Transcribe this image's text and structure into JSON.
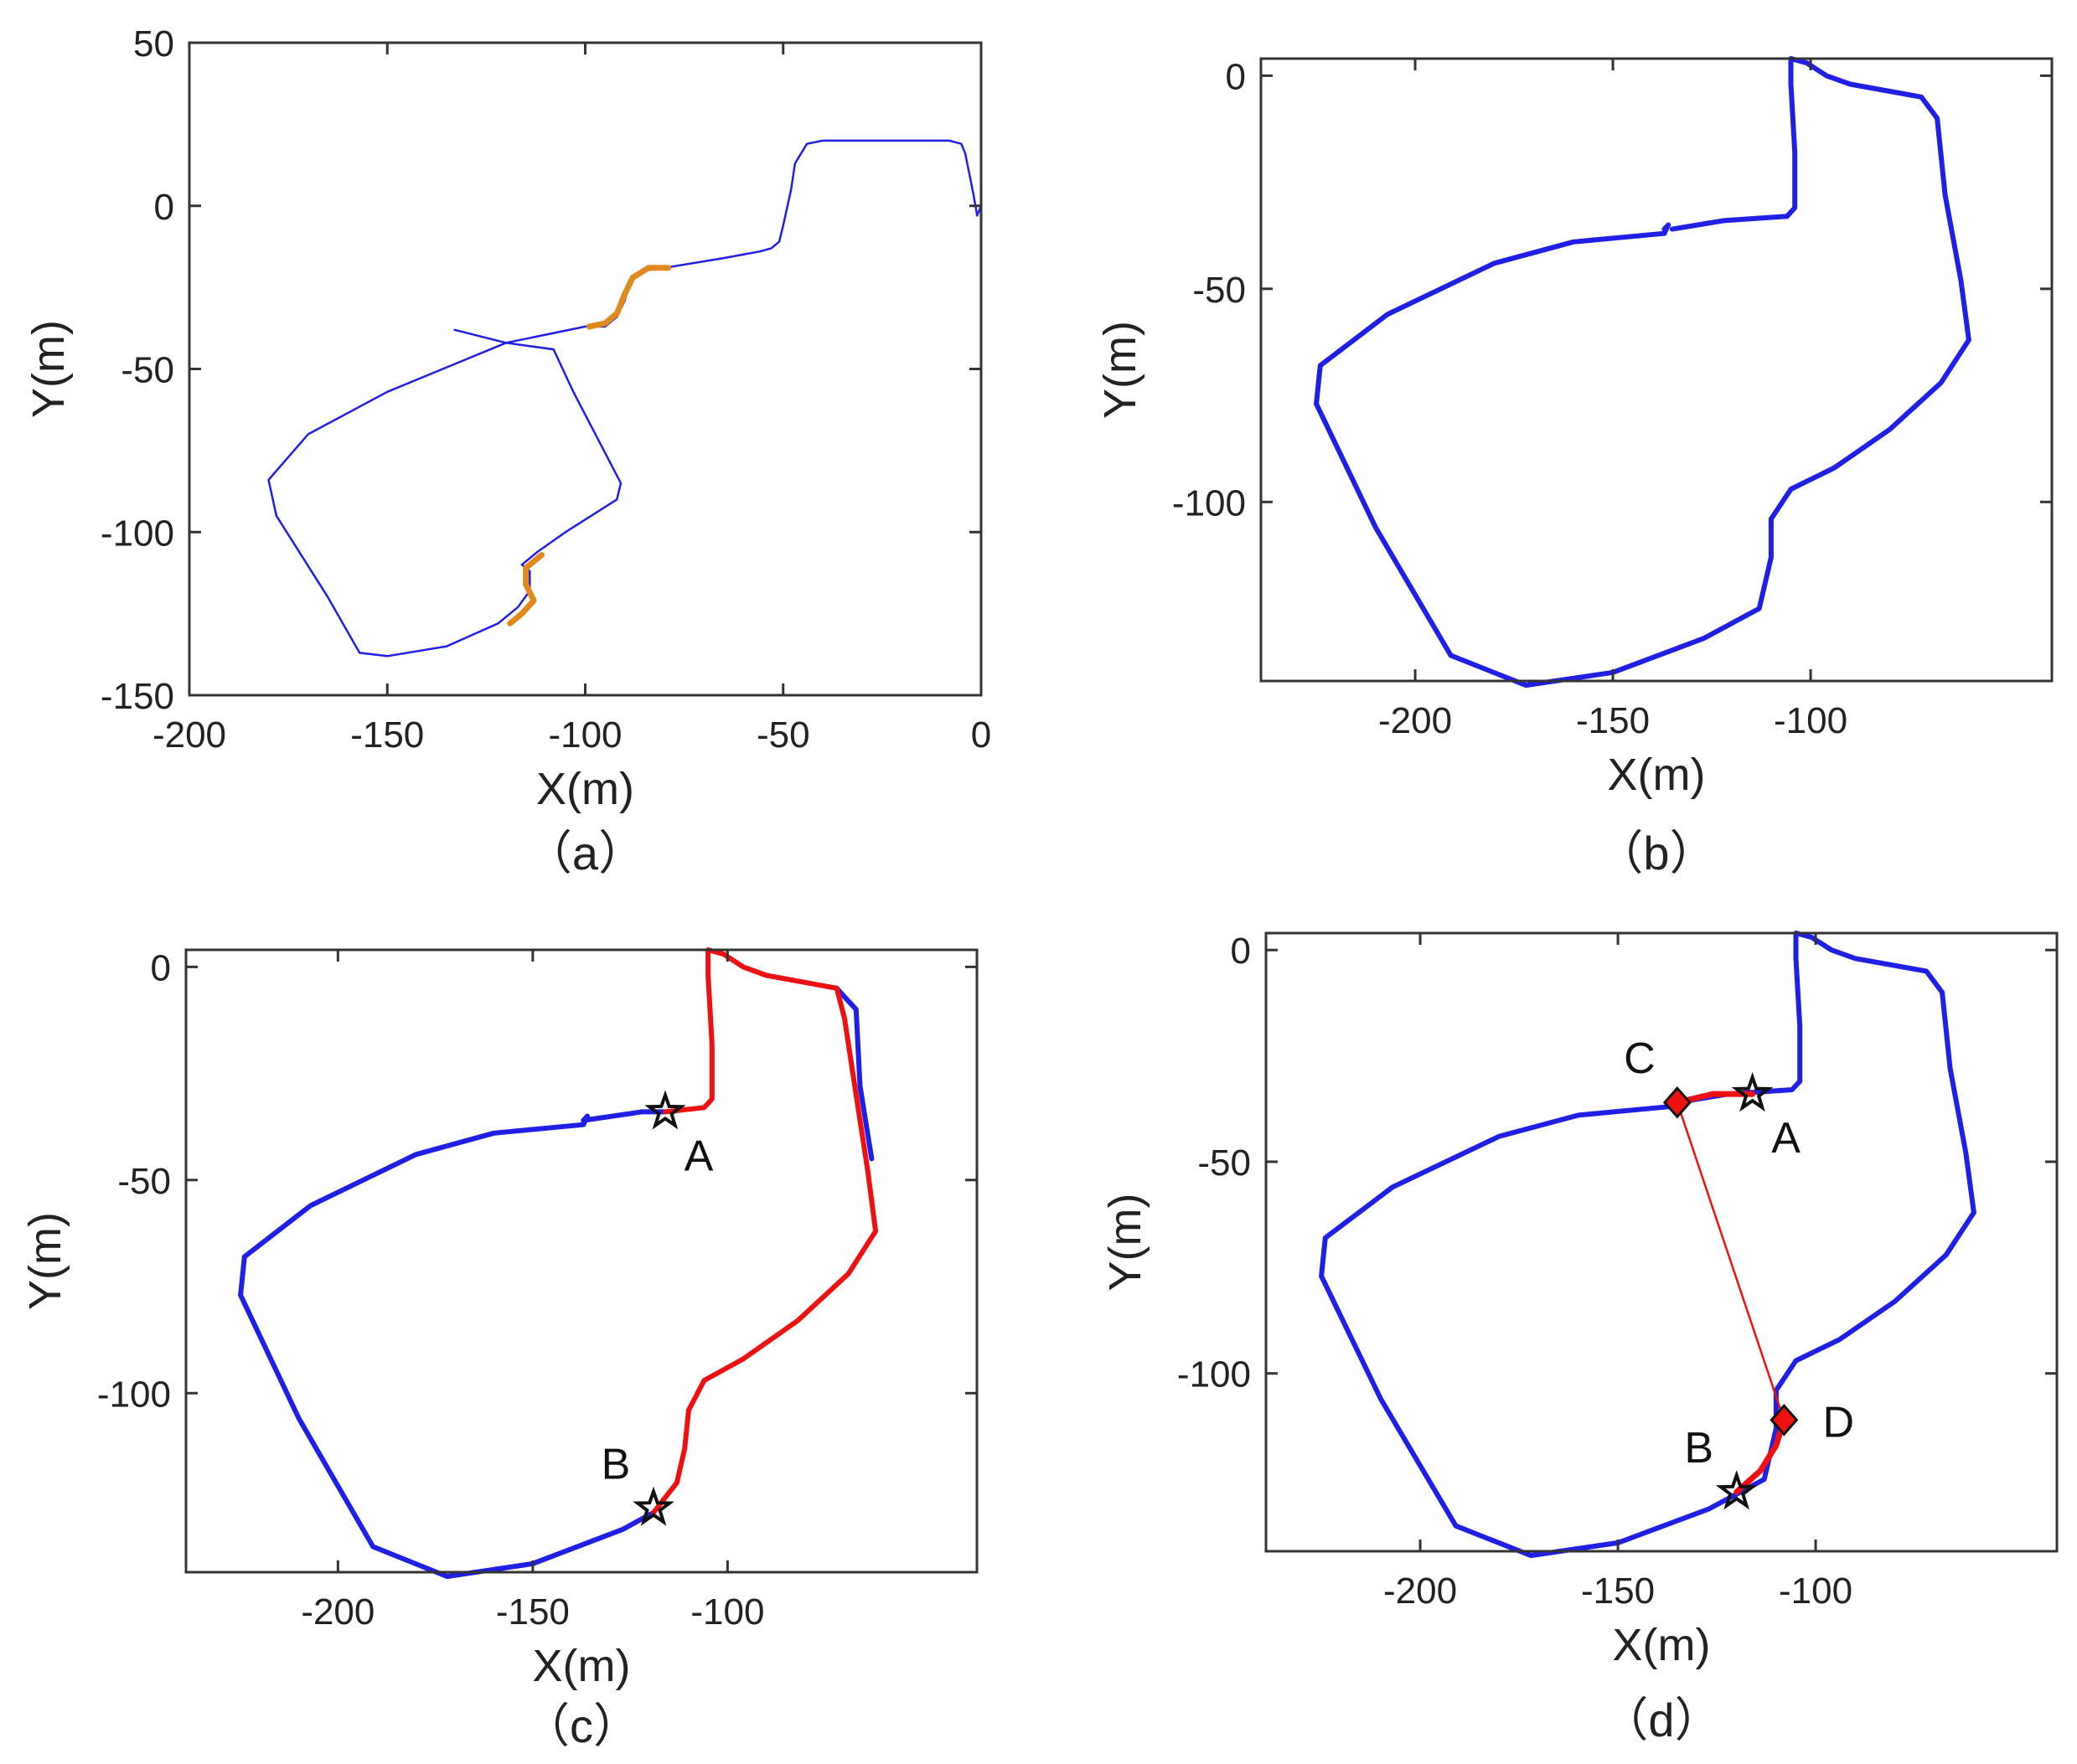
{
  "colors": {
    "trajectory": "#1f1fe6",
    "highlight_orange": "#e08a1e",
    "highlight_red": "#ee1111",
    "marker": "#111111"
  },
  "chart_data": [
    {
      "id": "a",
      "type": "line",
      "caption": "（a）",
      "xlabel": "X(m)",
      "ylabel": "Y(m)",
      "xlim": [
        -200,
        0
      ],
      "ylim": [
        -150,
        50
      ],
      "xticks": [
        -200,
        -150,
        -100,
        -50,
        0
      ],
      "yticks": [
        50,
        0,
        -50,
        -100,
        -150
      ],
      "series": [
        {
          "name": "trajectory",
          "color": "#1f1fe6",
          "width": 2.5,
          "points": [
            [
              0,
              0
            ],
            [
              -1,
              -3
            ],
            [
              -2,
              4
            ],
            [
              -3,
              10
            ],
            [
              -4,
              16
            ],
            [
              -5,
              19
            ],
            [
              -8,
              20
            ],
            [
              -20,
              20
            ],
            [
              -40,
              20
            ],
            [
              -44,
              19
            ],
            [
              -47,
              13
            ],
            [
              -48,
              5
            ],
            [
              -50,
              -6
            ],
            [
              -51,
              -11
            ],
            [
              -53,
              -13
            ],
            [
              -56,
              -14
            ],
            [
              -65,
              -16
            ],
            [
              -80,
              -19
            ],
            [
              -86,
              -20
            ],
            [
              -89,
              -24
            ],
            [
              -90,
              -29
            ],
            [
              -92,
              -34
            ],
            [
              -95,
              -37
            ],
            [
              -100,
              -37
            ],
            [
              -120,
              -42
            ],
            [
              -150,
              -57
            ],
            [
              -170,
              -70
            ],
            [
              -180,
              -84
            ],
            [
              -178,
              -95
            ],
            [
              -165,
              -120
            ],
            [
              -157,
              -137
            ],
            [
              -150,
              -138
            ],
            [
              -135,
              -135
            ],
            [
              -122,
              -128
            ],
            [
              -117,
              -123
            ],
            [
              -114,
              -118
            ],
            [
              -114,
              -112
            ],
            [
              -116,
              -110
            ],
            [
              -112,
              -106
            ],
            [
              -105,
              -100
            ],
            [
              -92,
              -90
            ],
            [
              -91,
              -85
            ],
            [
              -103,
              -57
            ],
            [
              -108,
              -44
            ],
            [
              -120,
              -42
            ],
            [
              -133,
              -38
            ]
          ]
        },
        {
          "name": "highlight-1",
          "color": "#e08a1e",
          "width": 7,
          "points": [
            [
              -79,
              -19
            ],
            [
              -84,
              -19
            ],
            [
              -88,
              -22
            ],
            [
              -90,
              -27
            ],
            [
              -92,
              -33
            ],
            [
              -95,
              -36
            ],
            [
              -99,
              -37
            ]
          ]
        },
        {
          "name": "highlight-2",
          "color": "#e08a1e",
          "width": 7,
          "points": [
            [
              -111,
              -107
            ],
            [
              -115,
              -111
            ],
            [
              -115,
              -116
            ],
            [
              -113,
              -121
            ],
            [
              -116,
              -125
            ],
            [
              -119,
              -128
            ]
          ]
        }
      ],
      "markers": []
    },
    {
      "id": "b",
      "type": "line",
      "caption": "（b）",
      "xlabel": "X(m)",
      "ylabel": "Y(m)",
      "xlim": [
        -239,
        -39
      ],
      "ylim": [
        -142,
        4
      ],
      "xticks": [
        -200,
        -150,
        -100
      ],
      "yticks": [
        0,
        -50,
        -100
      ],
      "series": [
        {
          "name": "trajectory",
          "color": "#1f1fe6",
          "width": 6,
          "points": [
            [
              -135,
              -36
            ],
            [
              -122,
              -34
            ],
            [
              -106,
              -33
            ],
            [
              -104,
              -31
            ],
            [
              -104,
              -18
            ],
            [
              -105,
              -2
            ],
            [
              -105,
              4
            ],
            [
              -101,
              3
            ],
            [
              -96,
              0
            ],
            [
              -90,
              -2
            ],
            [
              -72,
              -5
            ],
            [
              -68,
              -10
            ],
            [
              -66,
              -28
            ],
            [
              -62,
              -48
            ],
            [
              -60,
              -62
            ],
            [
              -67,
              -72
            ],
            [
              -80,
              -83
            ],
            [
              -94,
              -92
            ],
            [
              -105,
              -97
            ],
            [
              -110,
              -104
            ],
            [
              -110,
              -113
            ],
            [
              -113,
              -125
            ],
            [
              -127,
              -132
            ],
            [
              -150,
              -140
            ],
            [
              -172,
              -143
            ],
            [
              -191,
              -136
            ],
            [
              -210,
              -106
            ],
            [
              -225,
              -77
            ],
            [
              -224,
              -68
            ],
            [
              -207,
              -56
            ],
            [
              -180,
              -44
            ],
            [
              -160,
              -39
            ],
            [
              -137,
              -37
            ],
            [
              -136,
              -35
            ],
            [
              -137,
              -36
            ]
          ]
        }
      ],
      "markers": []
    },
    {
      "id": "c",
      "type": "line",
      "caption": "（c）",
      "xlabel": "X(m)",
      "ylabel": "Y(m)",
      "xlim": [
        -239,
        -36
      ],
      "ylim": [
        -142,
        4
      ],
      "xticks": [
        -200,
        -150,
        -100
      ],
      "yticks": [
        0,
        -50,
        -100
      ],
      "series": [
        {
          "name": "trajectory",
          "color": "#1f1fe6",
          "width": 6,
          "points": [
            [
              -119,
              -128
            ],
            [
              -127,
              -132
            ],
            [
              -150,
              -140
            ],
            [
              -172,
              -143
            ],
            [
              -191,
              -136
            ],
            [
              -210,
              -106
            ],
            [
              -225,
              -77
            ],
            [
              -224,
              -68
            ],
            [
              -207,
              -56
            ],
            [
              -180,
              -44
            ],
            [
              -160,
              -39
            ],
            [
              -137,
              -37
            ],
            [
              -136,
              -35
            ],
            [
              -137,
              -36
            ],
            [
              -122,
              -34
            ],
            [
              -116,
              -34
            ]
          ]
        },
        {
          "name": "blue-overlap",
          "color": "#1f1fe6",
          "width": 6,
          "points": [
            [
              -72,
              -5
            ],
            [
              -67,
              -10
            ],
            [
              -66,
              -28
            ],
            [
              -63,
              -45
            ]
          ]
        },
        {
          "name": "loop-segment",
          "color": "#ee1111",
          "width": 6,
          "points": [
            [
              -116,
              -34
            ],
            [
              -106,
              -33
            ],
            [
              -104,
              -31
            ],
            [
              -104,
              -18
            ],
            [
              -105,
              -2
            ],
            [
              -105,
              4
            ],
            [
              -101,
              3
            ],
            [
              -96,
              0
            ],
            [
              -90,
              -2
            ],
            [
              -72,
              -5
            ],
            [
              -70,
              -12
            ],
            [
              -67,
              -30
            ],
            [
              -64,
              -48
            ],
            [
              -62,
              -62
            ],
            [
              -69,
              -72
            ],
            [
              -82,
              -83
            ],
            [
              -96,
              -92
            ],
            [
              -106,
              -97
            ],
            [
              -110,
              -104
            ],
            [
              -111,
              -113
            ],
            [
              -113,
              -121
            ],
            [
              -119,
              -128
            ]
          ]
        }
      ],
      "markers": [
        {
          "label": "A",
          "x": -116,
          "y": -34,
          "symbol": "star",
          "label_pos": "below-right"
        },
        {
          "label": "B",
          "x": -119,
          "y": -127,
          "symbol": "star",
          "label_pos": "above-left"
        }
      ]
    },
    {
      "id": "d",
      "type": "line",
      "caption": "（d）",
      "xlabel": "X(m)",
      "ylabel": "Y(m)",
      "xlim": [
        -239,
        -39
      ],
      "ylim": [
        -142,
        4
      ],
      "xticks": [
        -200,
        -150,
        -100
      ],
      "yticks": [
        0,
        -50,
        -100
      ],
      "series": [
        {
          "name": "trajectory",
          "color": "#1f1fe6",
          "width": 6,
          "points": [
            [
              -135,
              -36
            ],
            [
              -122,
              -34
            ],
            [
              -106,
              -33
            ],
            [
              -104,
              -31
            ],
            [
              -104,
              -18
            ],
            [
              -105,
              -2
            ],
            [
              -105,
              4
            ],
            [
              -101,
              3
            ],
            [
              -96,
              0
            ],
            [
              -90,
              -2
            ],
            [
              -72,
              -5
            ],
            [
              -68,
              -10
            ],
            [
              -66,
              -28
            ],
            [
              -62,
              -48
            ],
            [
              -60,
              -62
            ],
            [
              -67,
              -72
            ],
            [
              -80,
              -83
            ],
            [
              -94,
              -92
            ],
            [
              -105,
              -97
            ],
            [
              -110,
              -104
            ],
            [
              -110,
              -113
            ],
            [
              -113,
              -125
            ],
            [
              -127,
              -132
            ],
            [
              -150,
              -140
            ],
            [
              -172,
              -143
            ],
            [
              -191,
              -136
            ],
            [
              -210,
              -106
            ],
            [
              -225,
              -77
            ],
            [
              -224,
              -68
            ],
            [
              -207,
              -56
            ],
            [
              -180,
              -44
            ],
            [
              -160,
              -39
            ],
            [
              -137,
              -37
            ],
            [
              -136,
              -35
            ],
            [
              -137,
              -36
            ]
          ]
        },
        {
          "name": "segment-CA",
          "color": "#ee1111",
          "width": 7,
          "points": [
            [
              -135,
              -36
            ],
            [
              -126,
              -34
            ],
            [
              -116,
              -34
            ]
          ]
        },
        {
          "name": "segment-BD",
          "color": "#ee1111",
          "width": 7,
          "points": [
            [
              -120,
              -128
            ],
            [
              -114,
              -123
            ],
            [
              -110,
              -117
            ],
            [
              -108,
              -111
            ]
          ]
        },
        {
          "name": "loop-closure",
          "color": "#ee1111",
          "width": 2.5,
          "points": [
            [
              -135,
              -36
            ],
            [
              -108,
              -111
            ]
          ]
        }
      ],
      "markers": [
        {
          "label": "A",
          "x": -116,
          "y": -34,
          "symbol": "star",
          "label_pos": "below-right"
        },
        {
          "label": "B",
          "x": -120,
          "y": -128,
          "symbol": "star",
          "label_pos": "above-left"
        },
        {
          "label": "C",
          "x": -135,
          "y": -36,
          "symbol": "diamond",
          "label_pos": "above-left"
        },
        {
          "label": "D",
          "x": -108,
          "y": -111,
          "symbol": "diamond",
          "label_pos": "right"
        }
      ]
    }
  ]
}
